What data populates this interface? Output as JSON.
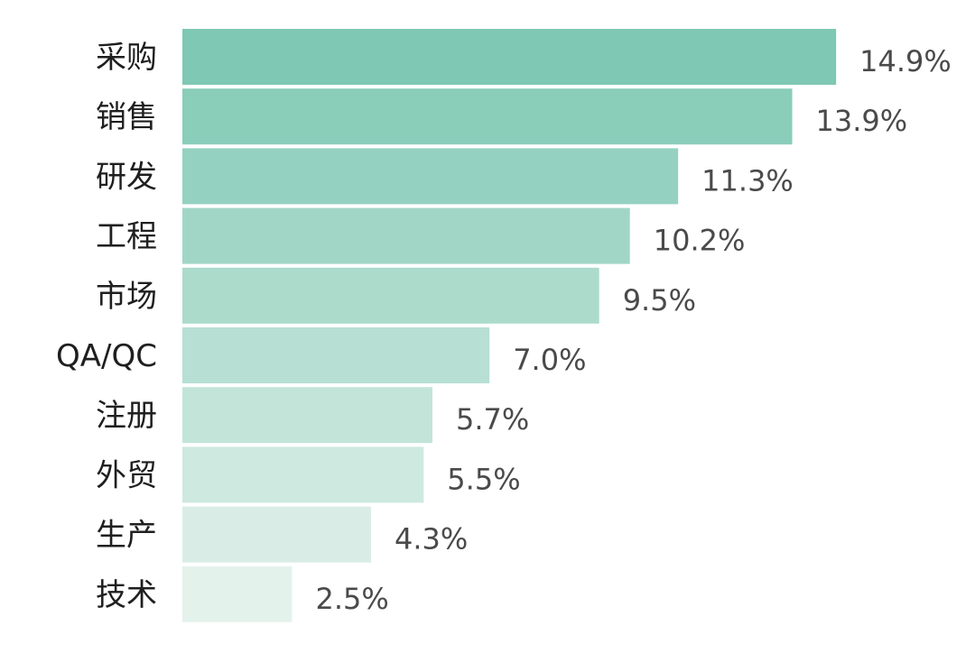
{
  "chart_data": {
    "type": "bar",
    "orientation": "horizontal",
    "categories": [
      "采购",
      "销售",
      "研发",
      "工程",
      "市场",
      "QA/QC",
      "注册",
      "外贸",
      "生产",
      "技术"
    ],
    "values": [
      14.9,
      13.9,
      11.3,
      10.2,
      9.5,
      7.0,
      5.7,
      5.5,
      4.3,
      2.5
    ],
    "value_labels": [
      "14.9%",
      "13.9%",
      "11.3%",
      "10.2%",
      "9.5%",
      "7.0%",
      "5.7%",
      "5.5%",
      "4.3%",
      "2.5%"
    ],
    "unit": "%",
    "title": "",
    "xlabel": "",
    "ylabel": "",
    "grid": false,
    "legend": "none",
    "colors": {
      "bar_top": "#7fc8b3",
      "bar_bottom": "#e4f2ec",
      "category_text": "#1f1f1f",
      "value_text": "#4a4a4a"
    }
  }
}
